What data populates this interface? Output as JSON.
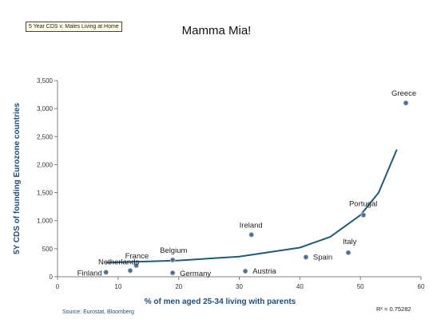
{
  "header": {
    "tag": "5 Year CDS v. Males Living at Home",
    "title": "Mamma Mia!"
  },
  "footer": {
    "source": "Source: Eurostat, Bloomberg",
    "r2": "R² = 0.75282"
  },
  "colors": {
    "axis": "#7f7f7f",
    "point": "#4f6f8f",
    "trend": "#1f5a7a",
    "axis_title": "#1f4e79"
  },
  "chart_data": {
    "type": "scatter",
    "title": "Mamma Mia!",
    "xlabel": "% of men aged 25-34 living with parents",
    "ylabel": "5Y CDS of founding Eurozone countries",
    "xlim": [
      0,
      60
    ],
    "ylim": [
      0,
      3500
    ],
    "xticks": [
      0,
      10,
      20,
      30,
      40,
      50,
      60
    ],
    "yticks": [
      0,
      500,
      1000,
      1500,
      2000,
      2500,
      3000,
      3500
    ],
    "ytick_labels": [
      "0",
      "500",
      "1,000",
      "1,500",
      "2,000",
      "2,500",
      "3,000",
      "3,500"
    ],
    "grid": false,
    "legend": "none",
    "points": [
      {
        "label": "Finland",
        "x": 8,
        "y": 80
      },
      {
        "label": "Netherlands",
        "x": 12,
        "y": 110
      },
      {
        "label": "France",
        "x": 13,
        "y": 200
      },
      {
        "label": "Belgium",
        "x": 19,
        "y": 300
      },
      {
        "label": "Germany",
        "x": 19,
        "y": 70
      },
      {
        "label": "Ireland",
        "x": 32,
        "y": 750
      },
      {
        "label": "Austria",
        "x": 31,
        "y": 100
      },
      {
        "label": "Spain",
        "x": 41,
        "y": 350
      },
      {
        "label": "Italy",
        "x": 48,
        "y": 430
      },
      {
        "label": "Portugal",
        "x": 50.5,
        "y": 1100
      },
      {
        "label": "Greece",
        "x": 57.5,
        "y": 3100
      }
    ],
    "trendline": {
      "type": "exponential",
      "x_range": [
        8,
        56
      ],
      "r_squared": 0.75282,
      "samples": [
        {
          "x": 8,
          "y": 250
        },
        {
          "x": 20,
          "y": 290
        },
        {
          "x": 30,
          "y": 360
        },
        {
          "x": 40,
          "y": 520
        },
        {
          "x": 45,
          "y": 710
        },
        {
          "x": 50,
          "y": 1100
        },
        {
          "x": 53,
          "y": 1500
        },
        {
          "x": 56,
          "y": 2270
        }
      ]
    }
  }
}
